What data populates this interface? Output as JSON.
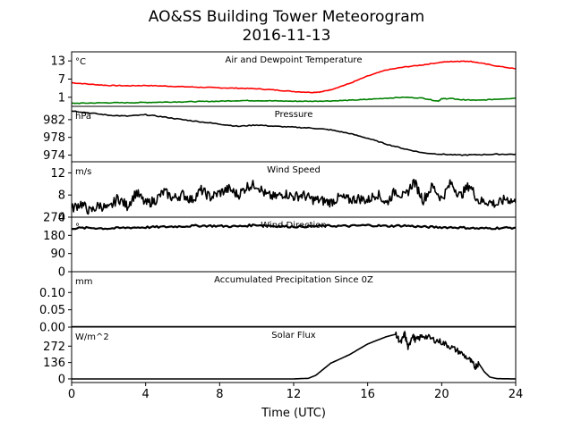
{
  "figure": {
    "title_line1": "AO&SS Building Tower Meteorogram",
    "title_line2": "2016-11-13",
    "xlabel": "Time (UTC)",
    "x_ticks": [
      0,
      4,
      8,
      12,
      16,
      20,
      24
    ],
    "xlim": [
      0,
      24
    ]
  },
  "chart_data": [
    {
      "type": "line",
      "title": "Air and Dewpoint Temperature",
      "unit": "°C",
      "ylim": [
        -2,
        16
      ],
      "yticks": [
        "13",
        "7",
        "1"
      ],
      "ytick_values": [
        13,
        7,
        1
      ],
      "series": [
        {
          "color": "#ff0000",
          "x": [
            0,
            1,
            2,
            3,
            4,
            5,
            6,
            7,
            8,
            9,
            10,
            11,
            12,
            13,
            13.5,
            14,
            15,
            16,
            17,
            18,
            19,
            20,
            20.5,
            21,
            21.5,
            22,
            23,
            24
          ],
          "y": [
            5.8,
            5.3,
            4.9,
            4.8,
            4.9,
            4.7,
            4.5,
            4.3,
            4.1,
            4.0,
            3.8,
            3.4,
            2.9,
            2.6,
            2.8,
            3.5,
            5.5,
            8.0,
            10.0,
            11.0,
            11.7,
            12.6,
            12.8,
            12.9,
            12.9,
            12.4,
            11.3,
            10.4
          ]
        },
        {
          "color": "#008000",
          "x": [
            0,
            1,
            2,
            3,
            4,
            5,
            6,
            7,
            8,
            9,
            10,
            11,
            12,
            13,
            14,
            15,
            16,
            17,
            18,
            19,
            19.8,
            20,
            20.5,
            21,
            21.5,
            22,
            23,
            24
          ],
          "y": [
            -1.0,
            -0.9,
            -0.8,
            -0.8,
            -0.7,
            -0.6,
            -0.5,
            -0.4,
            -0.3,
            -0.1,
            -0.1,
            -0.2,
            -0.3,
            -0.3,
            -0.2,
            0.0,
            0.3,
            0.7,
            1.0,
            0.7,
            -0.3,
            0.5,
            0.6,
            0.2,
            0.1,
            0.0,
            0.4,
            0.7
          ]
        }
      ]
    },
    {
      "type": "line",
      "title": "Pressure",
      "unit": "hPa",
      "ylim": [
        972.5,
        985
      ],
      "yticks": [
        "982",
        "978",
        "974"
      ],
      "ytick_values": [
        982,
        978,
        974
      ],
      "series": [
        {
          "color": "#000000",
          "x": [
            0,
            1,
            2,
            3,
            4,
            5,
            6,
            7,
            8,
            9,
            10,
            11,
            12,
            13,
            14,
            15,
            16,
            17,
            18,
            19,
            20,
            21,
            22,
            23,
            24
          ],
          "y": [
            984.0,
            983.5,
            983.0,
            982.8,
            983.1,
            982.6,
            982.0,
            981.5,
            981.0,
            980.5,
            980.8,
            980.5,
            980.3,
            980.1,
            979.7,
            978.9,
            977.8,
            976.5,
            975.4,
            974.5,
            974.2,
            974.0,
            974.1,
            974.2,
            974.2
          ]
        }
      ]
    },
    {
      "type": "line",
      "title": "Wind Speed",
      "unit": "m/s",
      "ylim": [
        4,
        14
      ],
      "yticks": [
        "12",
        "8",
        "4"
      ],
      "ytick_values": [
        12,
        8,
        4
      ],
      "series": [
        {
          "color": "#000000",
          "x": [
            0,
            0.5,
            1,
            1.5,
            2,
            2.5,
            3,
            3.5,
            4,
            4.5,
            5,
            5.5,
            6,
            6.5,
            7,
            7.5,
            8,
            8.5,
            9,
            9.5,
            10,
            10.5,
            11,
            11.5,
            12,
            12.5,
            13,
            13.5,
            14,
            14.5,
            15,
            15.5,
            16,
            16.5,
            17,
            17.5,
            18,
            18.5,
            19,
            19.5,
            20,
            20.5,
            21,
            21.5,
            22,
            22.5,
            23,
            23.5,
            24
          ],
          "y": [
            5.5,
            6.5,
            5.0,
            6.2,
            5.4,
            7.5,
            6.0,
            8.5,
            6.4,
            7.0,
            8.6,
            7.4,
            8.1,
            7.1,
            8.9,
            7.6,
            8.4,
            9.1,
            8.0,
            9.6,
            9.9,
            8.0,
            7.6,
            8.3,
            7.7,
            8.0,
            7.2,
            7.0,
            6.7,
            7.6,
            7.1,
            7.4,
            7.0,
            8.3,
            6.5,
            8.8,
            7.6,
            10.5,
            7.1,
            9.6,
            7.3,
            10.2,
            7.8,
            9.8,
            6.9,
            6.8,
            6.3,
            7.4,
            6.6
          ]
        }
      ]
    },
    {
      "type": "line",
      "title": "Wind Direction",
      "unit": "°",
      "ylim": [
        0,
        270
      ],
      "yticks": [
        "270",
        "180",
        "90",
        "0"
      ],
      "ytick_values": [
        270,
        180,
        90,
        0
      ],
      "series": [
        {
          "color": "#000000",
          "x": [
            0,
            1,
            2,
            3,
            4,
            5,
            6,
            7,
            8,
            9,
            10,
            11,
            12,
            13,
            14,
            15,
            16,
            17,
            18,
            19,
            20,
            21,
            22,
            23,
            24
          ],
          "y": [
            215,
            217,
            214,
            218,
            220,
            222,
            225,
            228,
            226,
            224,
            232,
            226,
            223,
            225,
            227,
            226,
            230,
            226,
            228,
            222,
            220,
            219,
            214,
            216,
            218
          ]
        }
      ]
    },
    {
      "type": "line",
      "title": "Accumulated Precipitation Since 0Z",
      "unit": "mm",
      "ylim": [
        0,
        0.16
      ],
      "yticks": [
        "0.10",
        "0.05",
        "0.00"
      ],
      "ytick_values": [
        0.1,
        0.05,
        0.0
      ],
      "series": [
        {
          "color": "#000000",
          "x": [
            0,
            24
          ],
          "y": [
            0,
            0
          ]
        }
      ]
    },
    {
      "type": "line",
      "title": "Solar Flux",
      "unit": "W/m^2",
      "ylim": [
        -30,
        430
      ],
      "yticks": [
        "272",
        "136",
        "0"
      ],
      "ytick_values": [
        272,
        136,
        0
      ],
      "series": [
        {
          "color": "#000000",
          "x": [
            0,
            12,
            12.8,
            13.2,
            13.6,
            14,
            15,
            16,
            17,
            17.5,
            17.8,
            18,
            18.2,
            18.4,
            18.6,
            19,
            19.5,
            20,
            20.5,
            21,
            21.5,
            21.8,
            22,
            22.3,
            22.6,
            23,
            24
          ],
          "y": [
            0,
            0,
            5,
            30,
            80,
            130,
            200,
            290,
            350,
            370,
            300,
            375,
            250,
            365,
            320,
            360,
            330,
            305,
            265,
            220,
            160,
            100,
            130,
            60,
            15,
            2,
            0
          ]
        }
      ]
    }
  ]
}
